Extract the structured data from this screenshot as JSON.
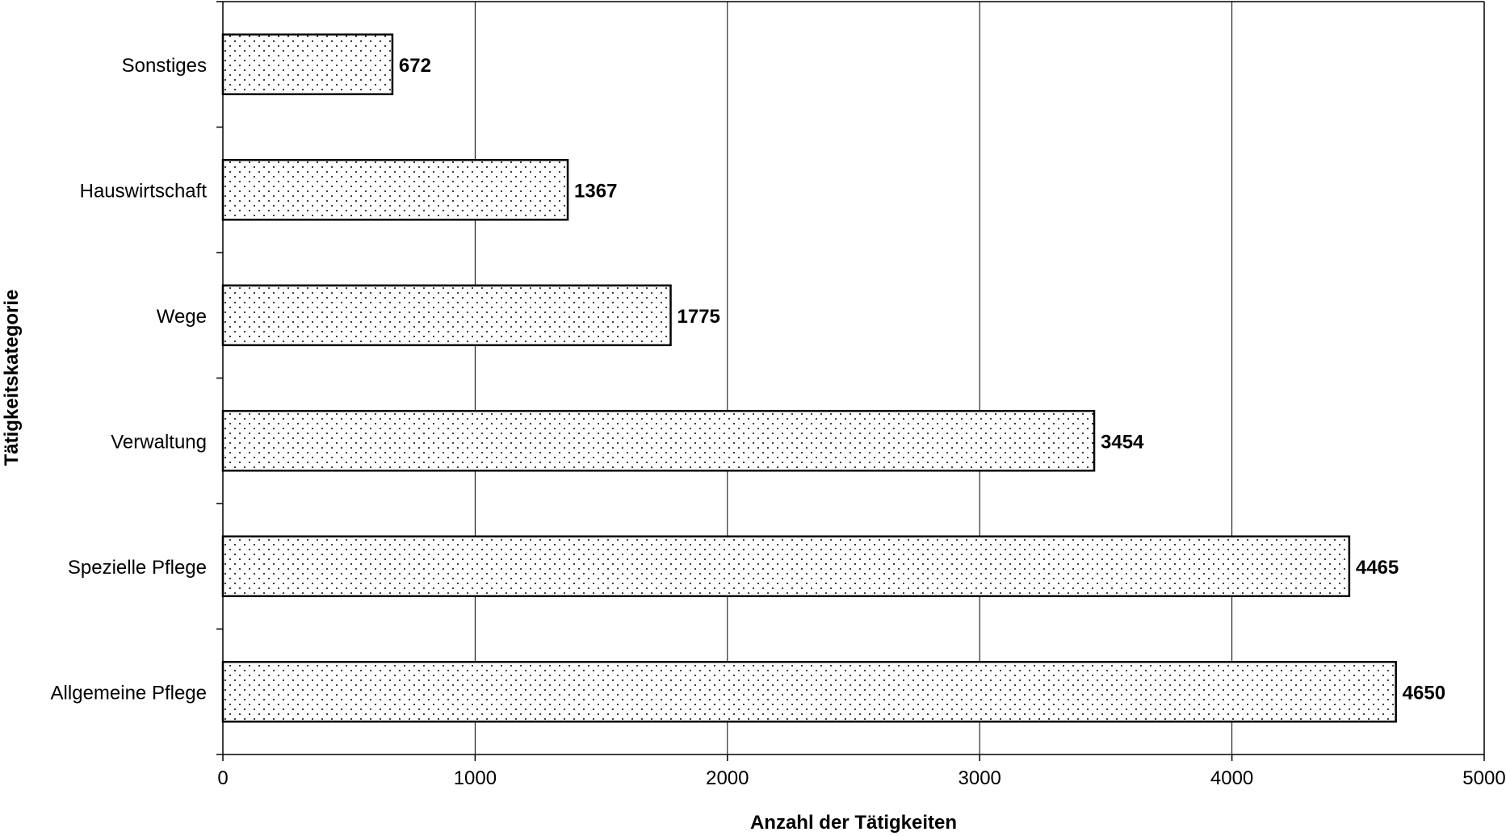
{
  "chart_data": {
    "type": "bar",
    "orientation": "horizontal",
    "categories": [
      "Sonstiges",
      "Hauswirtschaft",
      "Wege",
      "Verwaltung",
      "Spezielle Pflege",
      "Allgemeine Pflege"
    ],
    "values": [
      672,
      1367,
      1775,
      3454,
      4465,
      4650
    ],
    "xlabel": "Anzahl der Tätigkeiten",
    "ylabel": "Tätigkeitskategorie",
    "xlim": [
      0,
      5000
    ],
    "xticks": [
      0,
      1000,
      2000,
      3000,
      4000,
      5000
    ],
    "grid": "vertical",
    "bar_fill": "dotted",
    "bar_color": "#ffffff",
    "bar_edge_color": "#000000",
    "data_labels": true
  }
}
